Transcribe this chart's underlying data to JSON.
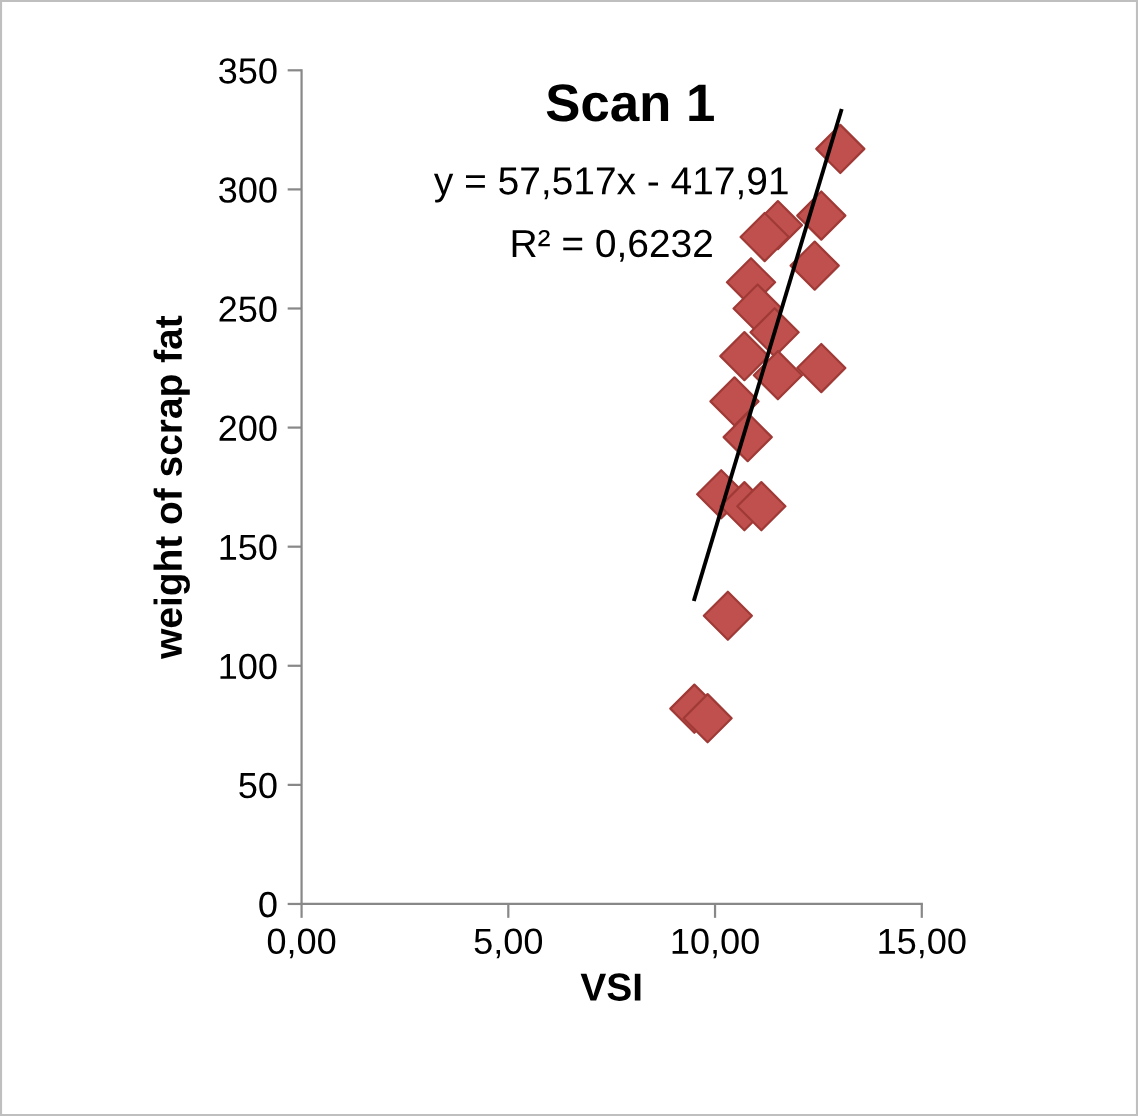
{
  "chart_data": {
    "type": "scatter",
    "title": "Scan 1",
    "xlabel": "VSI",
    "ylabel": "weight of scrap fat",
    "annotations": [
      "y = 57,517x - 417,91",
      "R² = 0,6232"
    ],
    "series": [
      {
        "color": "#c0504d",
        "marker": "diamond",
        "x": [
          13.03,
          12.57,
          11.52,
          11.2,
          12.41,
          10.87,
          11.03,
          11.44,
          10.71,
          12.57,
          11.52,
          10.47,
          10.79,
          10.15,
          10.71,
          11.12,
          10.31,
          9.5,
          9.82
        ],
        "values": [
          317,
          289,
          285,
          280,
          268,
          261,
          250,
          240,
          230,
          225,
          222,
          211,
          196,
          172,
          167,
          167,
          121,
          82,
          78
        ]
      },
      {
        "type": "line",
        "color": "#000000",
        "marker": "none",
        "line_style": "solid",
        "x": [
          9.5,
          13.05
        ],
        "values": [
          128,
          333
        ]
      }
    ],
    "xlim": [
      0,
      15
    ],
    "ylim": [
      0,
      350
    ],
    "xticks": [
      {
        "value": 0,
        "label": "0,00"
      },
      {
        "value": 5,
        "label": "5,00"
      },
      {
        "value": 10,
        "label": "10,00"
      },
      {
        "value": 15,
        "label": "15,00"
      }
    ],
    "yticks": [
      0,
      50,
      100,
      150,
      200,
      250,
      300,
      350
    ],
    "grid": false,
    "legend": false
  }
}
